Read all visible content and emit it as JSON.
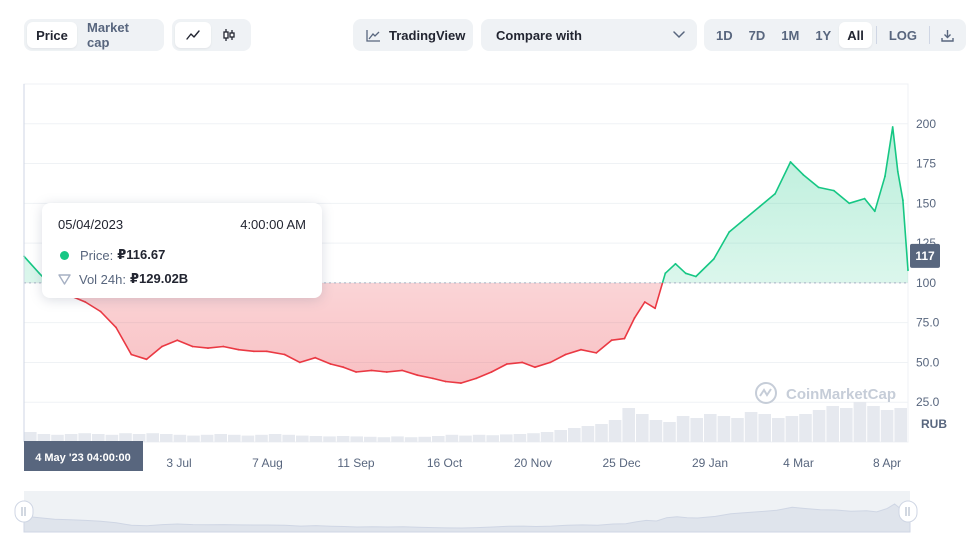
{
  "toolbar": {
    "view_tabs": [
      {
        "label": "Price",
        "active": true
      },
      {
        "label": "Market cap",
        "active": false
      }
    ],
    "chart_style_icons": [
      "line-chart-icon",
      "candlestick-icon"
    ],
    "tradingview_label": "TradingView",
    "compare_label": "Compare with",
    "ranges": [
      {
        "label": "1D",
        "active": false
      },
      {
        "label": "7D",
        "active": false
      },
      {
        "label": "1M",
        "active": false
      },
      {
        "label": "1Y",
        "active": false
      },
      {
        "label": "All",
        "active": true
      }
    ],
    "log_label": "LOG",
    "download_icon": "download-icon"
  },
  "tooltip": {
    "date": "05/04/2023",
    "time": "4:00:00 AM",
    "price_label": "Price:",
    "price_value": "₽116.67",
    "vol_label": "Vol 24h:",
    "vol_value": "₽129.02B"
  },
  "crosshair_label": "4 May '23 04:00:00",
  "current_price_badge": "117",
  "watermark": "CoinMarketCap",
  "currency": "RUB",
  "colors": {
    "up": "#16c784",
    "down": "#ea3943",
    "badge": "#58667e"
  },
  "chart_data": {
    "type": "area",
    "baseline": 100,
    "y_ticks": [
      "25.0",
      "50.0",
      "75.0",
      "100",
      "125",
      "150",
      "175",
      "200"
    ],
    "ylim": [
      0,
      225
    ],
    "x_ticks": [
      "3 Jul",
      "7 Aug",
      "11 Sep",
      "16 Oct",
      "20 Nov",
      "25 Dec",
      "29 Jan",
      "4 Mar",
      "8 Apr"
    ],
    "x": [
      "2023-05-04",
      "2023-05-10",
      "2023-05-16",
      "2023-05-22",
      "2023-05-28",
      "2023-06-03",
      "2023-06-09",
      "2023-06-15",
      "2023-06-21",
      "2023-06-27",
      "2023-07-03",
      "2023-07-09",
      "2023-07-15",
      "2023-07-21",
      "2023-07-27",
      "2023-08-02",
      "2023-08-07",
      "2023-08-14",
      "2023-08-20",
      "2023-08-26",
      "2023-09-01",
      "2023-09-06",
      "2023-09-11",
      "2023-09-17",
      "2023-09-23",
      "2023-09-29",
      "2023-10-05",
      "2023-10-11",
      "2023-10-16",
      "2023-10-22",
      "2023-10-28",
      "2023-11-03",
      "2023-11-09",
      "2023-11-15",
      "2023-11-20",
      "2023-11-26",
      "2023-12-02",
      "2023-12-08",
      "2023-12-14",
      "2023-12-20",
      "2023-12-25",
      "2023-12-29",
      "2024-01-02",
      "2024-01-06",
      "2024-01-10",
      "2024-01-14",
      "2024-01-18",
      "2024-01-22",
      "2024-01-29",
      "2024-02-04",
      "2024-02-10",
      "2024-02-16",
      "2024-02-22",
      "2024-02-28",
      "2024-03-04",
      "2024-03-10",
      "2024-03-16",
      "2024-03-22",
      "2024-03-28",
      "2024-04-01",
      "2024-04-05",
      "2024-04-08",
      "2024-04-10",
      "2024-04-12",
      "2024-04-14"
    ],
    "y": [
      116.7,
      106,
      96,
      92,
      88,
      82,
      72,
      55,
      52,
      60,
      64,
      60,
      59,
      60,
      58,
      57,
      57,
      55,
      50,
      53,
      49,
      47,
      44,
      45,
      44,
      45,
      42,
      40,
      38,
      37,
      40,
      44,
      49,
      50,
      47,
      50,
      55,
      58,
      56,
      64,
      65,
      78,
      88,
      84,
      106,
      112,
      106,
      104,
      115,
      132,
      140,
      148,
      156,
      176,
      168,
      160,
      158,
      150,
      153,
      145,
      167,
      198,
      170,
      152,
      108
    ],
    "volume": [
      0.25,
      0.2,
      0.18,
      0.2,
      0.22,
      0.2,
      0.18,
      0.22,
      0.2,
      0.22,
      0.2,
      0.18,
      0.16,
      0.18,
      0.2,
      0.18,
      0.16,
      0.18,
      0.2,
      0.18,
      0.16,
      0.15,
      0.14,
      0.15,
      0.14,
      0.13,
      0.12,
      0.14,
      0.12,
      0.13,
      0.15,
      0.18,
      0.16,
      0.18,
      0.17,
      0.19,
      0.2,
      0.22,
      0.25,
      0.3,
      0.35,
      0.4,
      0.45,
      0.55,
      0.85,
      0.7,
      0.55,
      0.5,
      0.65,
      0.6,
      0.7,
      0.65,
      0.6,
      0.75,
      0.7,
      0.6,
      0.65,
      0.7,
      0.8,
      0.9,
      0.85,
      1.0,
      0.9,
      0.8,
      0.85
    ]
  }
}
